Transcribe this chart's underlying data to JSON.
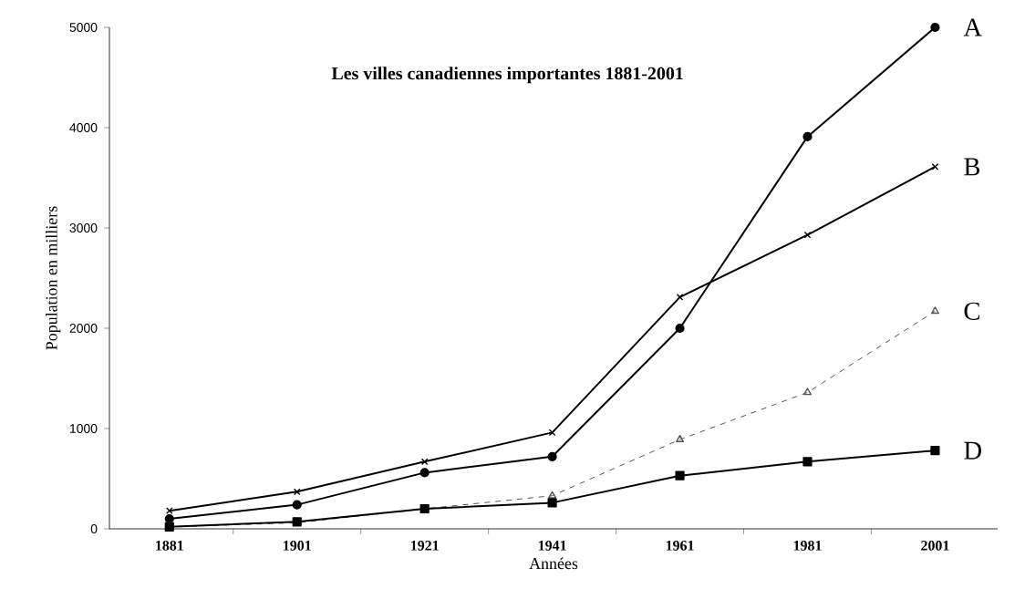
{
  "chart_data": {
    "type": "line",
    "title": "Les villes canadiennes importantes 1881-2001",
    "xlabel": "Années",
    "ylabel": "Population en milliers",
    "categories": [
      "1881",
      "1901",
      "1921",
      "1941",
      "1961",
      "1981",
      "2001"
    ],
    "series": [
      {
        "name": "A",
        "color": "#000000",
        "marker": "circle",
        "line_style": "solid",
        "values": [
          100,
          240,
          560,
          720,
          2000,
          3910,
          5000
        ]
      },
      {
        "name": "B",
        "color": "#000000",
        "marker": "cross",
        "line_style": "solid",
        "values": [
          180,
          370,
          670,
          960,
          2310,
          2930,
          3610
        ]
      },
      {
        "name": "C",
        "color": "#555555",
        "marker": "triangle",
        "line_style": "dashed",
        "values": [
          20,
          60,
          200,
          330,
          890,
          1360,
          2170
        ]
      },
      {
        "name": "D",
        "color": "#000000",
        "marker": "square",
        "line_style": "solid",
        "values": [
          20,
          70,
          200,
          260,
          530,
          670,
          780
        ]
      }
    ],
    "ylim": [
      0,
      5000
    ],
    "yticks": [
      0,
      1000,
      2000,
      3000,
      4000,
      5000
    ]
  }
}
